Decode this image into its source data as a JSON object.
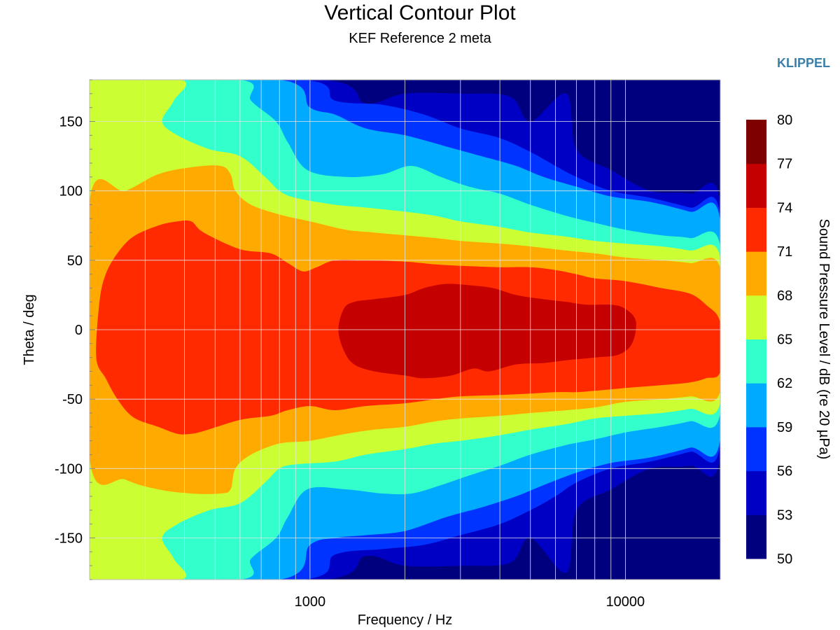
{
  "chart_data": {
    "type": "contour",
    "title": "Vertical Contour Plot",
    "subtitle": "KEF Reference 2 meta",
    "brand": "KLIPPEL",
    "xlabel": "Frequency / Hz",
    "ylabel": "Theta / deg",
    "x_scale": "log",
    "xlim": [
      200,
      20000
    ],
    "ylim": [
      -180,
      180
    ],
    "x_ticks": [
      1000,
      10000
    ],
    "x_tick_labels": [
      "1000",
      "10000"
    ],
    "y_ticks": [
      150,
      100,
      50,
      0,
      -50,
      -100,
      -150
    ],
    "y_tick_labels": [
      "150",
      "100",
      "50",
      "0",
      "-50",
      "-100",
      "-150"
    ],
    "grid": true,
    "colorbar": {
      "label": "Sound Pressure Level / dB (re 20 µPa)",
      "min": 50,
      "max": 80,
      "ticks": [
        80,
        77,
        74,
        71,
        68,
        65,
        62,
        59,
        56,
        53,
        50
      ],
      "tick_labels": [
        "80",
        "77",
        "74",
        "71",
        "68",
        "65",
        "62",
        "59",
        "56",
        "53",
        "50"
      ],
      "colors_low_to_high": [
        "#00007f",
        "#0000c4",
        "#0033ff",
        "#00aaff",
        "#33ffcc",
        "#ccff33",
        "#ffaa00",
        "#ff2a00",
        "#c40000",
        "#7f0000"
      ]
    },
    "contour_levels_db": [
      50,
      53,
      56,
      59,
      62,
      65,
      68,
      71,
      74,
      77,
      80
    ],
    "contour_boundaries": [
      {
        "level": 53,
        "points": [
          [
            200,
            -180
          ],
          [
            200,
            180
          ],
          [
            1100,
            180
          ],
          [
            1500,
            163
          ],
          [
            2000,
            170
          ],
          [
            3000,
            170
          ],
          [
            4300,
            168
          ],
          [
            5000,
            150
          ],
          [
            6500,
            170
          ],
          [
            7000,
            130
          ],
          [
            9000,
            115
          ],
          [
            12000,
            100
          ],
          [
            16000,
            98
          ],
          [
            20000,
            90
          ],
          [
            20000,
            -90
          ],
          [
            16000,
            -98
          ],
          [
            12000,
            -100
          ],
          [
            9000,
            -115
          ],
          [
            7000,
            -130
          ],
          [
            6500,
            -175
          ],
          [
            5000,
            -150
          ],
          [
            4300,
            -168
          ],
          [
            3000,
            -170
          ],
          [
            2000,
            -170
          ],
          [
            1500,
            -163
          ],
          [
            1100,
            -180
          ]
        ]
      },
      {
        "level": 56,
        "points": [
          [
            200,
            -180
          ],
          [
            200,
            180
          ],
          [
            950,
            180
          ],
          [
            1200,
            165
          ],
          [
            1700,
            162
          ],
          [
            2300,
            155
          ],
          [
            3000,
            145
          ],
          [
            4000,
            138
          ],
          [
            5000,
            128
          ],
          [
            6000,
            118
          ],
          [
            7000,
            110
          ],
          [
            9000,
            100
          ],
          [
            12000,
            95
          ],
          [
            16000,
            88
          ],
          [
            20000,
            82
          ],
          [
            20000,
            -82
          ],
          [
            16000,
            -88
          ],
          [
            12000,
            -95
          ],
          [
            9000,
            -100
          ],
          [
            7000,
            -110
          ],
          [
            6000,
            -120
          ],
          [
            5000,
            -130
          ],
          [
            4000,
            -140
          ],
          [
            3000,
            -148
          ],
          [
            2300,
            -155
          ],
          [
            1700,
            -158
          ],
          [
            1200,
            -162
          ],
          [
            950,
            -180
          ]
        ]
      },
      {
        "level": 59,
        "points": [
          [
            200,
            -180
          ],
          [
            200,
            180
          ],
          [
            800,
            180
          ],
          [
            1000,
            160
          ],
          [
            1200,
            155
          ],
          [
            1500,
            145
          ],
          [
            2000,
            140
          ],
          [
            2700,
            132
          ],
          [
            3500,
            125
          ],
          [
            4500,
            118
          ],
          [
            5500,
            110
          ],
          [
            7000,
            103
          ],
          [
            9000,
            96
          ],
          [
            12000,
            92
          ],
          [
            16000,
            85
          ],
          [
            20000,
            78
          ],
          [
            20000,
            -78
          ],
          [
            16000,
            -85
          ],
          [
            12000,
            -92
          ],
          [
            9000,
            -96
          ],
          [
            7000,
            -103
          ],
          [
            5500,
            -112
          ],
          [
            4500,
            -120
          ],
          [
            3500,
            -128
          ],
          [
            2700,
            -135
          ],
          [
            2000,
            -145
          ],
          [
            1500,
            -148
          ],
          [
            1200,
            -150
          ],
          [
            1000,
            -155
          ],
          [
            800,
            -180
          ]
        ]
      },
      {
        "level": 62,
        "points": [
          [
            200,
            -180
          ],
          [
            200,
            180
          ],
          [
            600,
            180
          ],
          [
            650,
            165
          ],
          [
            780,
            150
          ],
          [
            850,
            135
          ],
          [
            980,
            115
          ],
          [
            1300,
            110
          ],
          [
            1700,
            112
          ],
          [
            2100,
            118
          ],
          [
            2600,
            110
          ],
          [
            3200,
            103
          ],
          [
            4000,
            98
          ],
          [
            5000,
            90
          ],
          [
            6500,
            82
          ],
          [
            8000,
            77
          ],
          [
            10000,
            72
          ],
          [
            13000,
            68
          ],
          [
            16000,
            66
          ],
          [
            20000,
            60
          ],
          [
            20000,
            -60
          ],
          [
            16000,
            -66
          ],
          [
            13000,
            -70
          ],
          [
            10000,
            -74
          ],
          [
            8000,
            -79
          ],
          [
            6500,
            -83
          ],
          [
            5000,
            -90
          ],
          [
            4000,
            -98
          ],
          [
            3200,
            -105
          ],
          [
            2600,
            -112
          ],
          [
            2100,
            -118
          ],
          [
            1700,
            -118
          ],
          [
            1300,
            -115
          ],
          [
            980,
            -115
          ],
          [
            850,
            -135
          ],
          [
            780,
            -150
          ],
          [
            650,
            -165
          ],
          [
            600,
            -180
          ]
        ]
      },
      {
        "level": 65,
        "points": [
          [
            200,
            -180
          ],
          [
            200,
            180
          ],
          [
            390,
            180
          ],
          [
            370,
            165
          ],
          [
            340,
            150
          ],
          [
            380,
            140
          ],
          [
            480,
            130
          ],
          [
            600,
            125
          ],
          [
            720,
            110
          ],
          [
            800,
            100
          ],
          [
            900,
            95
          ],
          [
            1200,
            90
          ],
          [
            1500,
            88
          ],
          [
            2000,
            85
          ],
          [
            2500,
            82
          ],
          [
            3000,
            78
          ],
          [
            4000,
            74
          ],
          [
            5000,
            70
          ],
          [
            6500,
            67
          ],
          [
            8000,
            64
          ],
          [
            10000,
            62
          ],
          [
            13000,
            60
          ],
          [
            16000,
            57
          ],
          [
            20000,
            52
          ],
          [
            20000,
            -52
          ],
          [
            16000,
            -57
          ],
          [
            13000,
            -60
          ],
          [
            10000,
            -62
          ],
          [
            8000,
            -64
          ],
          [
            6500,
            -68
          ],
          [
            5000,
            -72
          ],
          [
            4000,
            -76
          ],
          [
            3000,
            -80
          ],
          [
            2500,
            -82
          ],
          [
            2000,
            -86
          ],
          [
            1500,
            -90
          ],
          [
            1200,
            -95
          ],
          [
            900,
            -97
          ],
          [
            800,
            -100
          ],
          [
            720,
            -110
          ],
          [
            600,
            -125
          ],
          [
            480,
            -130
          ],
          [
            380,
            -140
          ],
          [
            340,
            -150
          ],
          [
            370,
            -165
          ],
          [
            390,
            -180
          ]
        ]
      },
      {
        "level": 68,
        "points": [
          [
            200,
            -93
          ],
          [
            200,
            93
          ],
          [
            260,
            100
          ],
          [
            330,
            112
          ],
          [
            420,
            117
          ],
          [
            520,
            118
          ],
          [
            560,
            112
          ],
          [
            580,
            100
          ],
          [
            650,
            90
          ],
          [
            800,
            83
          ],
          [
            1000,
            78
          ],
          [
            1300,
            72
          ],
          [
            1600,
            70
          ],
          [
            2000,
            68
          ],
          [
            2500,
            66
          ],
          [
            3000,
            64
          ],
          [
            4000,
            62
          ],
          [
            5000,
            60
          ],
          [
            6500,
            57
          ],
          [
            8000,
            55
          ],
          [
            10000,
            52
          ],
          [
            13000,
            50
          ],
          [
            16000,
            48
          ],
          [
            20000,
            44
          ],
          [
            20000,
            -44
          ],
          [
            16000,
            -48
          ],
          [
            13000,
            -50
          ],
          [
            10000,
            -52
          ],
          [
            8000,
            -56
          ],
          [
            6500,
            -58
          ],
          [
            5000,
            -60
          ],
          [
            4000,
            -62
          ],
          [
            3000,
            -64
          ],
          [
            2500,
            -66
          ],
          [
            2000,
            -70
          ],
          [
            1600,
            -72
          ],
          [
            1300,
            -75
          ],
          [
            1000,
            -80
          ],
          [
            800,
            -82
          ],
          [
            650,
            -90
          ],
          [
            580,
            -100
          ],
          [
            560,
            -115
          ],
          [
            520,
            -118
          ],
          [
            420,
            -118
          ],
          [
            330,
            -115
          ],
          [
            260,
            -108
          ]
        ]
      },
      {
        "level": 71,
        "points": [
          [
            210,
            -20
          ],
          [
            215,
            20
          ],
          [
            225,
            40
          ],
          [
            245,
            55
          ],
          [
            275,
            67
          ],
          [
            330,
            75
          ],
          [
            380,
            78
          ],
          [
            420,
            78
          ],
          [
            460,
            70
          ],
          [
            600,
            58
          ],
          [
            750,
            55
          ],
          [
            850,
            48
          ],
          [
            950,
            42
          ],
          [
            1050,
            45
          ],
          [
            1200,
            50
          ],
          [
            1500,
            50
          ],
          [
            2000,
            49
          ],
          [
            2500,
            47
          ],
          [
            3000,
            46
          ],
          [
            4000,
            45
          ],
          [
            5000,
            45
          ],
          [
            6000,
            43
          ],
          [
            7000,
            40
          ],
          [
            8000,
            37
          ],
          [
            10000,
            35
          ],
          [
            13000,
            30
          ],
          [
            16000,
            26
          ],
          [
            18000,
            18
          ],
          [
            20000,
            5
          ],
          [
            20000,
            -30
          ],
          [
            18000,
            -35
          ],
          [
            16000,
            -38
          ],
          [
            13000,
            -40
          ],
          [
            10000,
            -42
          ],
          [
            8000,
            -44
          ],
          [
            7000,
            -45
          ],
          [
            6000,
            -45
          ],
          [
            5000,
            -46
          ],
          [
            4000,
            -47
          ],
          [
            3000,
            -48
          ],
          [
            2500,
            -50
          ],
          [
            2000,
            -53
          ],
          [
            1500,
            -55
          ],
          [
            1200,
            -58
          ],
          [
            1000,
            -55
          ],
          [
            850,
            -58
          ],
          [
            750,
            -62
          ],
          [
            600,
            -65
          ],
          [
            460,
            -73
          ],
          [
            420,
            -75
          ],
          [
            380,
            -75
          ],
          [
            330,
            -70
          ],
          [
            275,
            -63
          ],
          [
            245,
            -50
          ],
          [
            225,
            -35
          ]
        ]
      },
      {
        "level": 74,
        "points": [
          [
            1230,
            0
          ],
          [
            1280,
            15
          ],
          [
            1380,
            20
          ],
          [
            1600,
            22
          ],
          [
            2000,
            25
          ],
          [
            2300,
            30
          ],
          [
            2700,
            33
          ],
          [
            3200,
            32
          ],
          [
            3800,
            30
          ],
          [
            4500,
            25
          ],
          [
            5500,
            22
          ],
          [
            6500,
            20
          ],
          [
            7500,
            18
          ],
          [
            9000,
            18
          ],
          [
            10000,
            15
          ],
          [
            10800,
            6
          ],
          [
            10500,
            -10
          ],
          [
            9500,
            -18
          ],
          [
            8000,
            -20
          ],
          [
            6500,
            -22
          ],
          [
            5500,
            -24
          ],
          [
            4500,
            -25
          ],
          [
            3700,
            -30
          ],
          [
            3300,
            -28
          ],
          [
            2800,
            -33
          ],
          [
            2300,
            -35
          ],
          [
            2000,
            -33
          ],
          [
            1600,
            -30
          ],
          [
            1380,
            -25
          ],
          [
            1280,
            -15
          ]
        ]
      }
    ]
  }
}
